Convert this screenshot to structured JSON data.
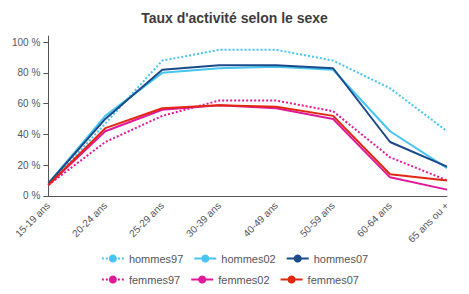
{
  "chart_data": {
    "type": "line",
    "title": "Taux d'activité selon le sexe",
    "categories": [
      "15-19 ans",
      "20-24 ans",
      "25-29 ans",
      "30-39 ans",
      "40-49 ans",
      "50-59 ans",
      "60-64 ans",
      "65 ans ou +"
    ],
    "series": [
      {
        "name": "hommes97",
        "color": "#45c5ef",
        "line_style": "dotted",
        "values": [
          7,
          47,
          88,
          95,
          95,
          88,
          70,
          42
        ]
      },
      {
        "name": "hommes02",
        "color": "#45c5ef",
        "line_style": "solid",
        "values": [
          8,
          52,
          80,
          83,
          84,
          82,
          42,
          18
        ]
      },
      {
        "name": "hommes07",
        "color": "#1a4a8a",
        "line_style": "solid",
        "values": [
          8,
          50,
          82,
          85,
          85,
          83,
          35,
          19
        ]
      },
      {
        "name": "femmes97",
        "color": "#e0189a",
        "line_style": "dotted",
        "values": [
          7,
          35,
          52,
          62,
          62,
          55,
          25,
          10
        ]
      },
      {
        "name": "femmes02",
        "color": "#e0189a",
        "line_style": "solid",
        "values": [
          7,
          42,
          56,
          59,
          57,
          50,
          12,
          4
        ]
      },
      {
        "name": "femmes07",
        "color": "#e02810",
        "line_style": "solid",
        "values": [
          7,
          44,
          57,
          59,
          58,
          52,
          14,
          10
        ]
      }
    ],
    "ylim": [
      0,
      104
    ],
    "yticks": [
      {
        "value": 0,
        "label": "0 %"
      },
      {
        "value": 20,
        "label": "20 %"
      },
      {
        "value": 40,
        "label": "40 %"
      },
      {
        "value": 60,
        "label": "60 %"
      },
      {
        "value": 80,
        "label": "80 %"
      },
      {
        "value": 100,
        "label": "100 %"
      }
    ],
    "grid": false,
    "legend": "bottom"
  }
}
